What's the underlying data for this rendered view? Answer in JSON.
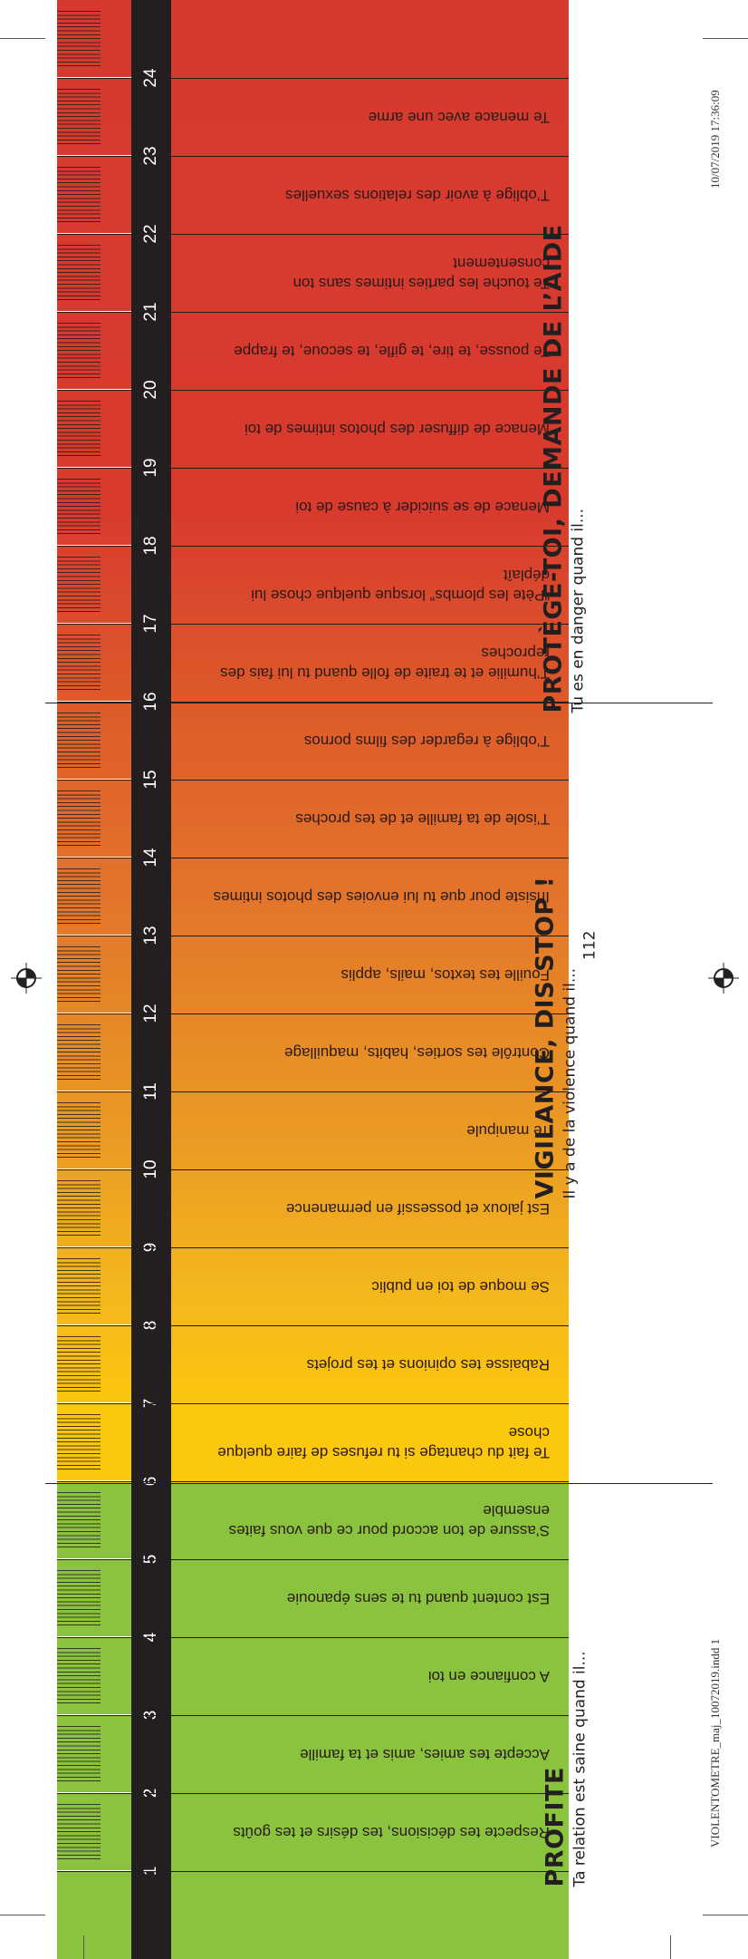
{
  "scale_numbers": [
    "1",
    "2",
    "3",
    "4",
    "5",
    "6",
    "7",
    "8",
    "9",
    "10",
    "11",
    "12",
    "13",
    "14",
    "15",
    "16",
    "17",
    "18",
    "19",
    "20",
    "21",
    "22",
    "23",
    "24"
  ],
  "items": [
    {
      "number": "24",
      "text": "Te menace avec une arme"
    },
    {
      "number": "23",
      "text": "T’oblige à avoir des relations sexuelles"
    },
    {
      "number": "22",
      "text": "Te touche les parties intimes sans ton consentement"
    },
    {
      "number": "21",
      "text": "Te pousse, te tire, te gifle, te secoue, te frappe"
    },
    {
      "number": "20",
      "text": "Menace de diffuser des photos intimes de toi"
    },
    {
      "number": "19",
      "text": "Menace de se suicider à cause de toi"
    },
    {
      "number": "18",
      "text": "“Pète les plombs” lorsque quelque chose lui déplaît"
    },
    {
      "number": "17",
      "text": "T’humilie et te traite de folle quand tu lui fais des reproches"
    },
    {
      "number": "16",
      "text": "T’oblige à regarder des films pornos"
    },
    {
      "number": "15",
      "text": "T’isole de ta famille et de tes proches"
    },
    {
      "number": "14",
      "text": "Insiste pour que tu lui envoies des photos intimes"
    },
    {
      "number": "13",
      "text": "Fouille tes textos, mails, applis"
    },
    {
      "number": "12",
      "text": "Contrôle tes sorties, habits, maquillage"
    },
    {
      "number": "11",
      "text": "Te manipule"
    },
    {
      "number": "10",
      "text": "Est jaloux et possessif en permanence"
    },
    {
      "number": "9",
      "text": "Se moque de toi en public"
    },
    {
      "number": "8",
      "text": "Rabaisse tes opinions et tes projets"
    },
    {
      "number": "7",
      "text": "Te fait du chantage si tu refuses de faire quelque chose"
    },
    {
      "number": "6",
      "text": "S’assure de ton accord pour ce que vous faites ensemble"
    },
    {
      "number": "5",
      "text": "Est content quand tu te sens épanouie"
    },
    {
      "number": "4",
      "text": "A confiance en toi"
    },
    {
      "number": "3",
      "text": "Accepte tes amies, amis et ta famille"
    },
    {
      "number": "2",
      "text": "Respecte tes décisions, tes désirs et tes goûts"
    }
  ],
  "sections": {
    "danger": {
      "title": "PROTÈGE-TOI, DEMANDE DE L’AIDE",
      "subtitle": "Tu es en danger quand il..."
    },
    "vigilance": {
      "title": "VIGILANCE, DIS STOP !",
      "subtitle": "Il y a de la violence quand il...",
      "phone": "112"
    },
    "healthy": {
      "title": "PROFITE",
      "subtitle": "Ta relation est saine quand il..."
    }
  },
  "slug": {
    "filename": "VIOLENTOMETRE_maj_10072019.indd   1",
    "timestamp": "10/07/2019   17:36:09"
  },
  "colors": {
    "red": "#d63a2e",
    "orange": "#e3762a",
    "yellow": "#fcc80e",
    "green": "#8ac43f",
    "ruler": "#231f20"
  }
}
